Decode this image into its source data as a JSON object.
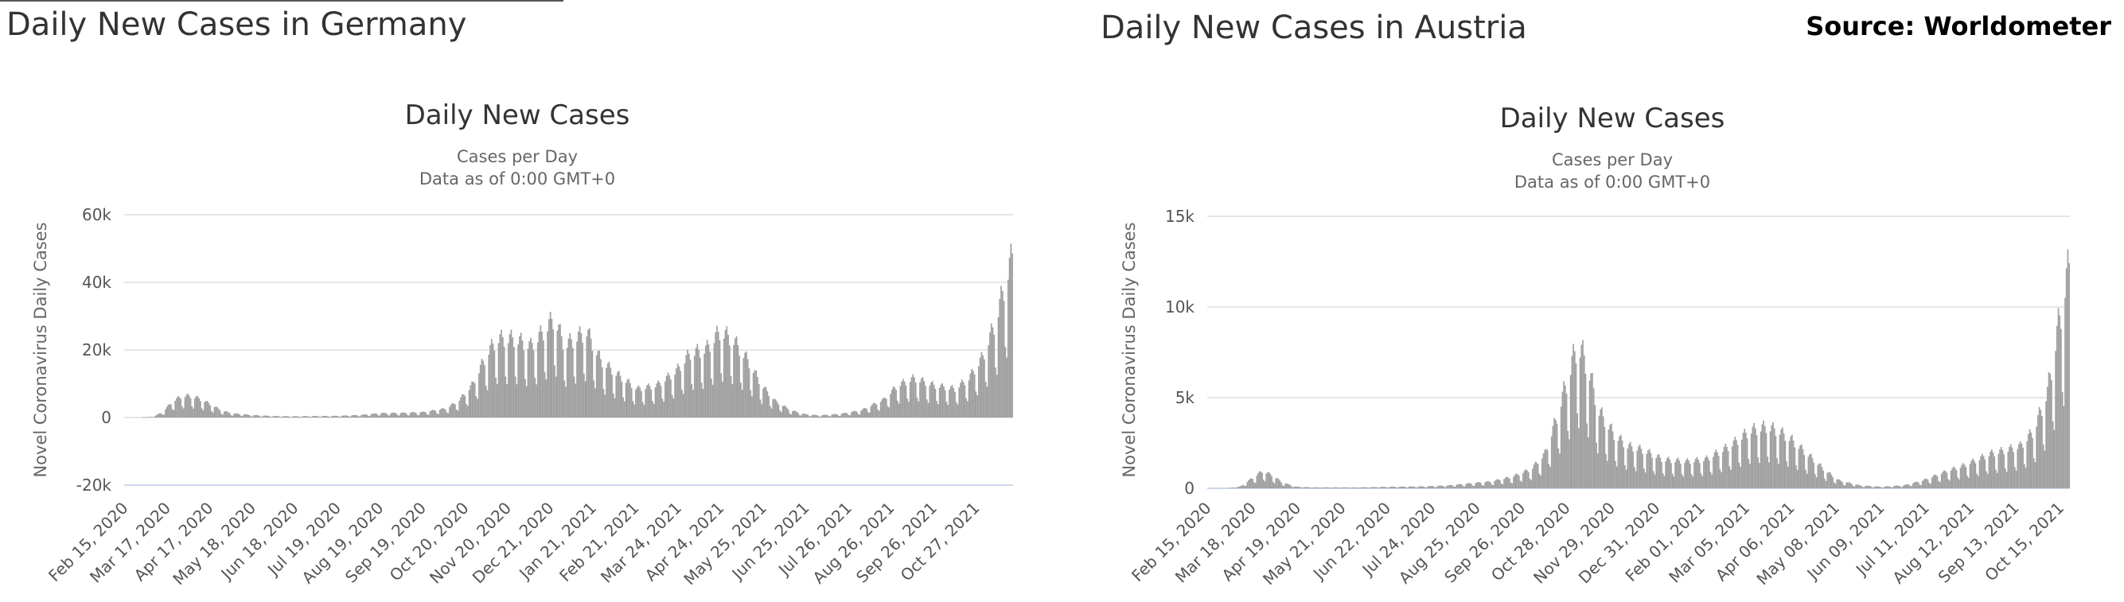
{
  "header": {
    "source": "Source: Worldometer"
  },
  "panels": {
    "germany": {
      "title": "Daily New Cases in Germany"
    },
    "austria": {
      "title": "Daily New Cases in Austria"
    }
  },
  "colors": {
    "bar": "#a0a0a0",
    "grid": "#e6e6e6",
    "axis": "#ccd6eb"
  },
  "chart_data": [
    {
      "id": "germany",
      "type": "bar",
      "title": "Daily New Cases",
      "subtitle": [
        "Cases per Day",
        "Data as of 0:00 GMT+0"
      ],
      "ylabel": "Novel Coronavirus Daily Cases",
      "xlabel": "",
      "ylim": [
        -20000,
        60000
      ],
      "yticks": [
        -20000,
        0,
        20000,
        40000,
        60000
      ],
      "yticklabels": [
        "-20k",
        "0",
        "20k",
        "40k",
        "60k"
      ],
      "xticklabels": [
        "Feb 15, 2020",
        "Mar 17, 2020",
        "Apr 17, 2020",
        "May 18, 2020",
        "Jun 18, 2020",
        "Jul 19, 2020",
        "Aug 19, 2020",
        "Sep 19, 2020",
        "Oct 20, 2020",
        "Nov 20, 2020",
        "Dec 21, 2020",
        "Jan 21, 2021",
        "Feb 21, 2021",
        "Mar 24, 2021",
        "Apr 24, 2021",
        "May 25, 2021",
        "Jun 25, 2021",
        "Jul 26, 2021",
        "Aug 26, 2021",
        "Sep 26, 2021",
        "Oct 27, 2021"
      ],
      "grid": true,
      "legend": "none",
      "x_start": "2020-02-15",
      "x_end": "2021-11-10",
      "series": [
        {
          "values": [
            [
              "2020-02-15",
              0
            ],
            [
              "2020-02-27",
              0
            ],
            [
              "2020-03-06",
              200
            ],
            [
              "2020-03-13",
              1500
            ],
            [
              "2020-03-20",
              4500
            ],
            [
              "2020-03-27",
              6000
            ],
            [
              "2020-04-03",
              6000
            ],
            [
              "2020-04-10",
              5000
            ],
            [
              "2020-04-17",
              3500
            ],
            [
              "2020-04-24",
              2000
            ],
            [
              "2020-05-01",
              1200
            ],
            [
              "2020-05-15",
              700
            ],
            [
              "2020-06-01",
              400
            ],
            [
              "2020-06-15",
              350
            ],
            [
              "2020-07-01",
              400
            ],
            [
              "2020-07-15",
              450
            ],
            [
              "2020-08-01",
              700
            ],
            [
              "2020-08-15",
              1200
            ],
            [
              "2020-09-01",
              1300
            ],
            [
              "2020-09-15",
              1500
            ],
            [
              "2020-10-01",
              2500
            ],
            [
              "2020-10-10",
              4500
            ],
            [
              "2020-10-20",
              9000
            ],
            [
              "2020-10-31",
              18000
            ],
            [
              "2020-11-07",
              22000
            ],
            [
              "2020-11-20",
              22000
            ],
            [
              "2020-12-01",
              20000
            ],
            [
              "2020-12-10",
              24000
            ],
            [
              "2020-12-18",
              28000
            ],
            [
              "2020-12-25",
              20000
            ],
            [
              "2021-01-01",
              22000
            ],
            [
              "2021-01-10",
              24000
            ],
            [
              "2021-01-20",
              16000
            ],
            [
              "2021-02-01",
              12000
            ],
            [
              "2021-02-15",
              8000
            ],
            [
              "2021-03-01",
              9000
            ],
            [
              "2021-03-15",
              13000
            ],
            [
              "2021-03-25",
              18000
            ],
            [
              "2021-04-05",
              19000
            ],
            [
              "2021-04-15",
              24000
            ],
            [
              "2021-04-24",
              22000
            ],
            [
              "2021-05-05",
              16000
            ],
            [
              "2021-05-15",
              9000
            ],
            [
              "2021-05-25",
              4500
            ],
            [
              "2021-06-05",
              2000
            ],
            [
              "2021-06-15",
              900
            ],
            [
              "2021-06-25",
              600
            ],
            [
              "2021-07-10",
              1000
            ],
            [
              "2021-07-25",
              2000
            ],
            [
              "2021-08-10",
              5000
            ],
            [
              "2021-08-20",
              9000
            ],
            [
              "2021-09-01",
              11000
            ],
            [
              "2021-09-15",
              9000
            ],
            [
              "2021-09-30",
              8000
            ],
            [
              "2021-10-10",
              11000
            ],
            [
              "2021-10-20",
              17000
            ],
            [
              "2021-10-30",
              28000
            ],
            [
              "2021-11-05",
              38000
            ],
            [
              "2021-11-10",
              45000
            ]
          ]
        }
      ]
    },
    {
      "id": "austria",
      "type": "bar",
      "title": "Daily New Cases",
      "subtitle": [
        "Cases per Day",
        "Data as of 0:00 GMT+0"
      ],
      "ylabel": "Novel Coronavirus Daily Cases",
      "xlabel": "",
      "ylim": [
        0,
        15000
      ],
      "yticks": [
        0,
        5000,
        10000,
        15000
      ],
      "yticklabels": [
        "0",
        "5k",
        "10k",
        "15k"
      ],
      "xticklabels": [
        "Feb 15, 2020",
        "Mar 18, 2020",
        "Apr 19, 2020",
        "May 21, 2020",
        "Jun 22, 2020",
        "Jul 24, 2020",
        "Aug 25, 2020",
        "Sep 26, 2020",
        "Oct 28, 2020",
        "Nov 29, 2020",
        "Dec 31, 2020",
        "Feb 01, 2021",
        "Mar 05, 2021",
        "Apr 06, 2021",
        "May 08, 2021",
        "Jun 09, 2021",
        "Jul 11, 2021",
        "Aug 12, 2021",
        "Sep 13, 2021",
        "Oct 15, 2021"
      ],
      "grid": true,
      "legend": "none",
      "x_start": "2020-02-15",
      "x_end": "2021-11-10",
      "series": [
        {
          "values": [
            [
              "2020-02-15",
              0
            ],
            [
              "2020-03-01",
              0
            ],
            [
              "2020-03-10",
              100
            ],
            [
              "2020-03-18",
              500
            ],
            [
              "2020-03-26",
              900
            ],
            [
              "2020-04-02",
              700
            ],
            [
              "2020-04-10",
              300
            ],
            [
              "2020-04-20",
              80
            ],
            [
              "2020-05-01",
              50
            ],
            [
              "2020-06-01",
              40
            ],
            [
              "2020-07-01",
              80
            ],
            [
              "2020-07-24",
              100
            ],
            [
              "2020-08-10",
              150
            ],
            [
              "2020-08-25",
              250
            ],
            [
              "2020-09-10",
              350
            ],
            [
              "2020-09-26",
              600
            ],
            [
              "2020-10-10",
              1000
            ],
            [
              "2020-10-20",
              1800
            ],
            [
              "2020-10-28",
              3500
            ],
            [
              "2020-11-05",
              5500
            ],
            [
              "2020-11-13",
              7500
            ],
            [
              "2020-11-20",
              6500
            ],
            [
              "2020-11-29",
              4000
            ],
            [
              "2020-12-10",
              2800
            ],
            [
              "2020-12-20",
              2200
            ],
            [
              "2020-12-31",
              2000
            ],
            [
              "2021-01-15",
              1500
            ],
            [
              "2021-02-01",
              1400
            ],
            [
              "2021-02-15",
              1500
            ],
            [
              "2021-03-05",
              2200
            ],
            [
              "2021-03-20",
              3000
            ],
            [
              "2021-04-01",
              3200
            ],
            [
              "2021-04-10",
              3000
            ],
            [
              "2021-04-20",
              2500
            ],
            [
              "2021-05-01",
              1800
            ],
            [
              "2021-05-15",
              900
            ],
            [
              "2021-05-25",
              400
            ],
            [
              "2021-06-09",
              150
            ],
            [
              "2021-06-25",
              80
            ],
            [
              "2021-07-11",
              150
            ],
            [
              "2021-07-25",
              400
            ],
            [
              "2021-08-12",
              900
            ],
            [
              "2021-08-25",
              1200
            ],
            [
              "2021-09-13",
              1800
            ],
            [
              "2021-09-25",
              2000
            ],
            [
              "2021-10-05",
              2200
            ],
            [
              "2021-10-15",
              3000
            ],
            [
              "2021-10-25",
              5000
            ],
            [
              "2021-11-01",
              8000
            ],
            [
              "2021-11-07",
              10500
            ],
            [
              "2021-11-10",
              11500
            ]
          ]
        }
      ]
    }
  ]
}
